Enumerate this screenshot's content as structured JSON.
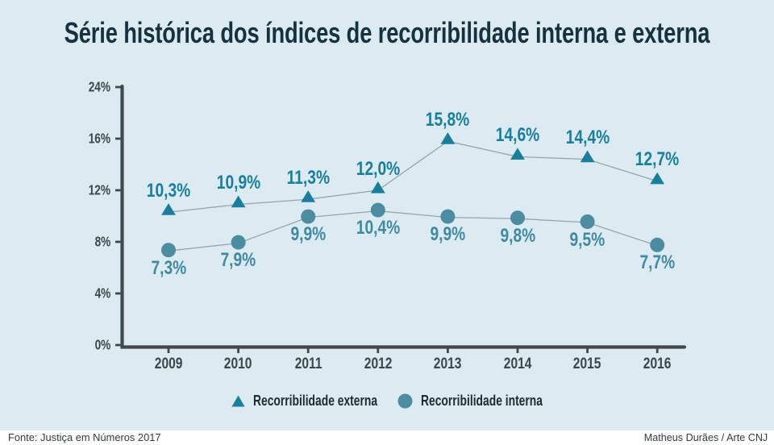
{
  "title": "Série histórica dos índices de recorribilidade interna e externa",
  "footer": {
    "source": "Fonte: Justiça em Números 2017",
    "credit": "Matheus Durães / Arte CNJ"
  },
  "legend": {
    "items": [
      {
        "label": "Recorribilidade externa",
        "marker": "triangle"
      },
      {
        "label": "Recorribilidade interna",
        "marker": "circle"
      }
    ]
  },
  "colors": {
    "background": "#dcebf2",
    "footer_background": "#ffffff",
    "title_text": "#16323f",
    "axis": "#40494d",
    "axis_tick_label": "#3c464b",
    "series_line": "#97a5a8",
    "external_series": "#177e9e",
    "internal_series": "#4b8ca0",
    "internal_value_label": "#3f8aa0",
    "legend_text": "#1f2a2e",
    "footer_text": "#323b3f"
  },
  "chart_data": {
    "type": "line",
    "title": "Série histórica dos índices de recorribilidade interna e externa",
    "categories": [
      "2009",
      "2010",
      "2011",
      "2012",
      "2013",
      "2014",
      "2015",
      "2016"
    ],
    "series": [
      {
        "name": "Recorribilidade externa",
        "marker": "triangle",
        "values": [
          10.3,
          10.9,
          11.3,
          12.0,
          15.8,
          14.6,
          14.4,
          12.7
        ],
        "point_labels": [
          "10,3%",
          "10,9%",
          "11,3%",
          "12,0%",
          "15,8%",
          "14,6%",
          "14,4%",
          "12,7%"
        ]
      },
      {
        "name": "Recorribilidade interna",
        "marker": "circle",
        "values": [
          7.3,
          7.9,
          9.9,
          10.4,
          9.9,
          9.8,
          9.5,
          7.7
        ],
        "point_labels": [
          "7,3%",
          "7,9%",
          "9,9%",
          "10,4%",
          "9,9%",
          "9,8%",
          "9,5%",
          "7,7%"
        ]
      }
    ],
    "xlabel": "",
    "ylabel": "",
    "y_axis": {
      "tick_labels": [
        "0%",
        "4%",
        "8%",
        "12%",
        "16%",
        "24%"
      ],
      "unit": "%"
    },
    "ylim": [
      0,
      24
    ],
    "grid": false,
    "legend_position": "bottom"
  }
}
